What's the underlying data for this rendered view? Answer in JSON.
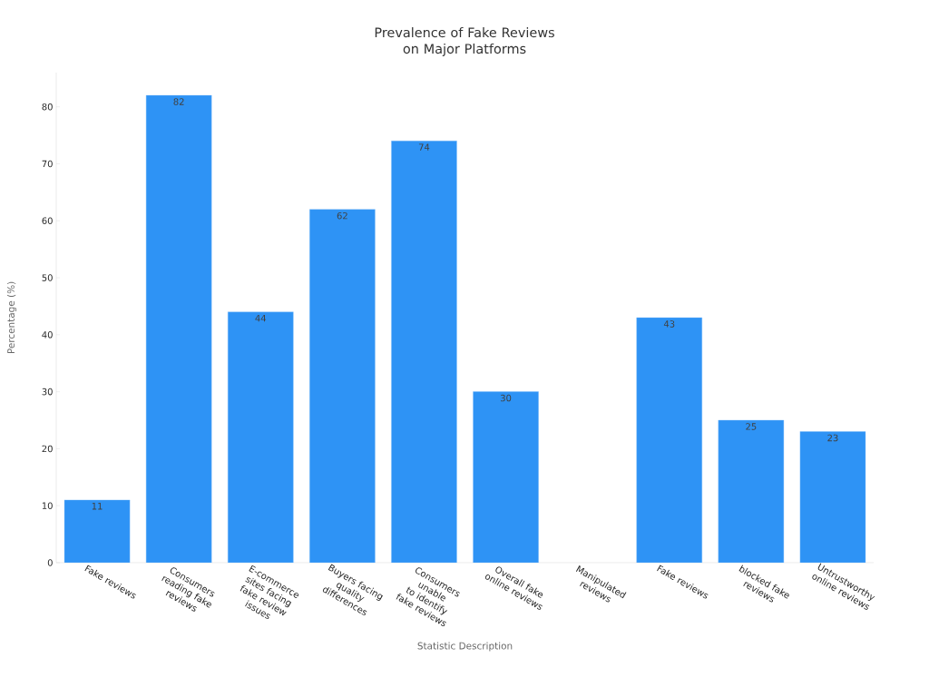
{
  "chart_data": {
    "type": "bar",
    "title": "Prevalence of Fake Reviews on Major Platforms",
    "xlabel": "Statistic Description",
    "ylabel": "Percentage (%)",
    "categories": [
      "Fake reviews",
      "Consumers reading fake reviews",
      "E-commerce sites facing fake review issues",
      "Buyers facing quality differences",
      "Consumers unable to identify fake reviews",
      "Overall fake online reviews",
      "Manipulated reviews",
      "Fake reviews",
      "blocked fake reviews",
      "Untrustworthy online reviews"
    ],
    "values": [
      11,
      82,
      44,
      62,
      74,
      30,
      null,
      43,
      25,
      23
    ],
    "color": "#2e93f5",
    "ylim": [
      0,
      86
    ],
    "yticks": [
      0,
      10,
      20,
      30,
      40,
      50,
      60,
      70,
      80
    ],
    "data_labels": true
  }
}
